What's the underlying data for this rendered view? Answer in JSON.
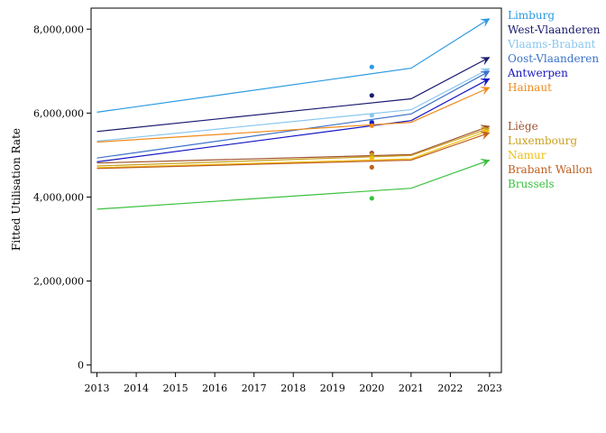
{
  "chart_data": {
    "type": "line",
    "title": "",
    "xlabel": "",
    "ylabel": "Fitted Utilisation Rate",
    "xlim": [
      2012.85,
      2023.3
    ],
    "ylim": [
      -180000,
      8500000
    ],
    "x_ticks": [
      "2013",
      "2014",
      "2015",
      "2016",
      "2017",
      "2018",
      "2019",
      "2020",
      "2021",
      "2022",
      "2023"
    ],
    "y_ticks": [
      {
        "value": 0,
        "label": "0"
      },
      {
        "value": 2000000,
        "label": "2,000,000"
      },
      {
        "value": 4000000,
        "label": "4,000,000"
      },
      {
        "value": 6000000,
        "label": "6,000,000"
      },
      {
        "value": 8000000,
        "label": "8,000,000"
      }
    ],
    "grid": false,
    "legend_position": "right",
    "x": [
      2013,
      2021,
      2023
    ],
    "series": [
      {
        "name": "Limburg",
        "color": "#2b9ae0",
        "values": [
          6020000,
          7070000,
          8250000
        ],
        "observed_2020": 7100000
      },
      {
        "name": "West-Vlaanderen",
        "color": "#1a1a6e",
        "values": [
          5560000,
          6340000,
          7330000
        ],
        "observed_2020": 6420000
      },
      {
        "name": "Vlaams-Brabant",
        "color": "#88c6f0",
        "values": [
          5330000,
          6080000,
          7060000
        ],
        "observed_2020": 5950000
      },
      {
        "name": "Oost-Vlaanderen",
        "color": "#3b72c8",
        "values": [
          4930000,
          5980000,
          7000000
        ],
        "observed_2020": 5790000
      },
      {
        "name": "Antwerpen",
        "color": "#1515c2",
        "values": [
          4840000,
          5820000,
          6820000
        ],
        "observed_2020": 5760000
      },
      {
        "name": "Hainaut",
        "color": "#f08a1a",
        "values": [
          5310000,
          5780000,
          6610000
        ],
        "observed_2020": 5700000
      },
      {
        "name": "Liège",
        "color": "#a0522d",
        "values": [
          4810000,
          5010000,
          5690000
        ],
        "observed_2020": 5050000
      },
      {
        "name": "Luxembourg",
        "color": "#c8a020",
        "values": [
          4740000,
          4990000,
          5640000
        ],
        "observed_2020": 5000000
      },
      {
        "name": "Namur",
        "color": "#f0c010",
        "values": [
          4700000,
          4910000,
          5590000
        ],
        "observed_2020": 4920000
      },
      {
        "name": "Brabant Wallon",
        "color": "#c06020",
        "values": [
          4680000,
          4880000,
          5530000
        ],
        "observed_2020": 4710000
      },
      {
        "name": "Brussels",
        "color": "#3cc040",
        "values": [
          3710000,
          4210000,
          4880000
        ],
        "observed_2020": 3970000
      }
    ]
  }
}
